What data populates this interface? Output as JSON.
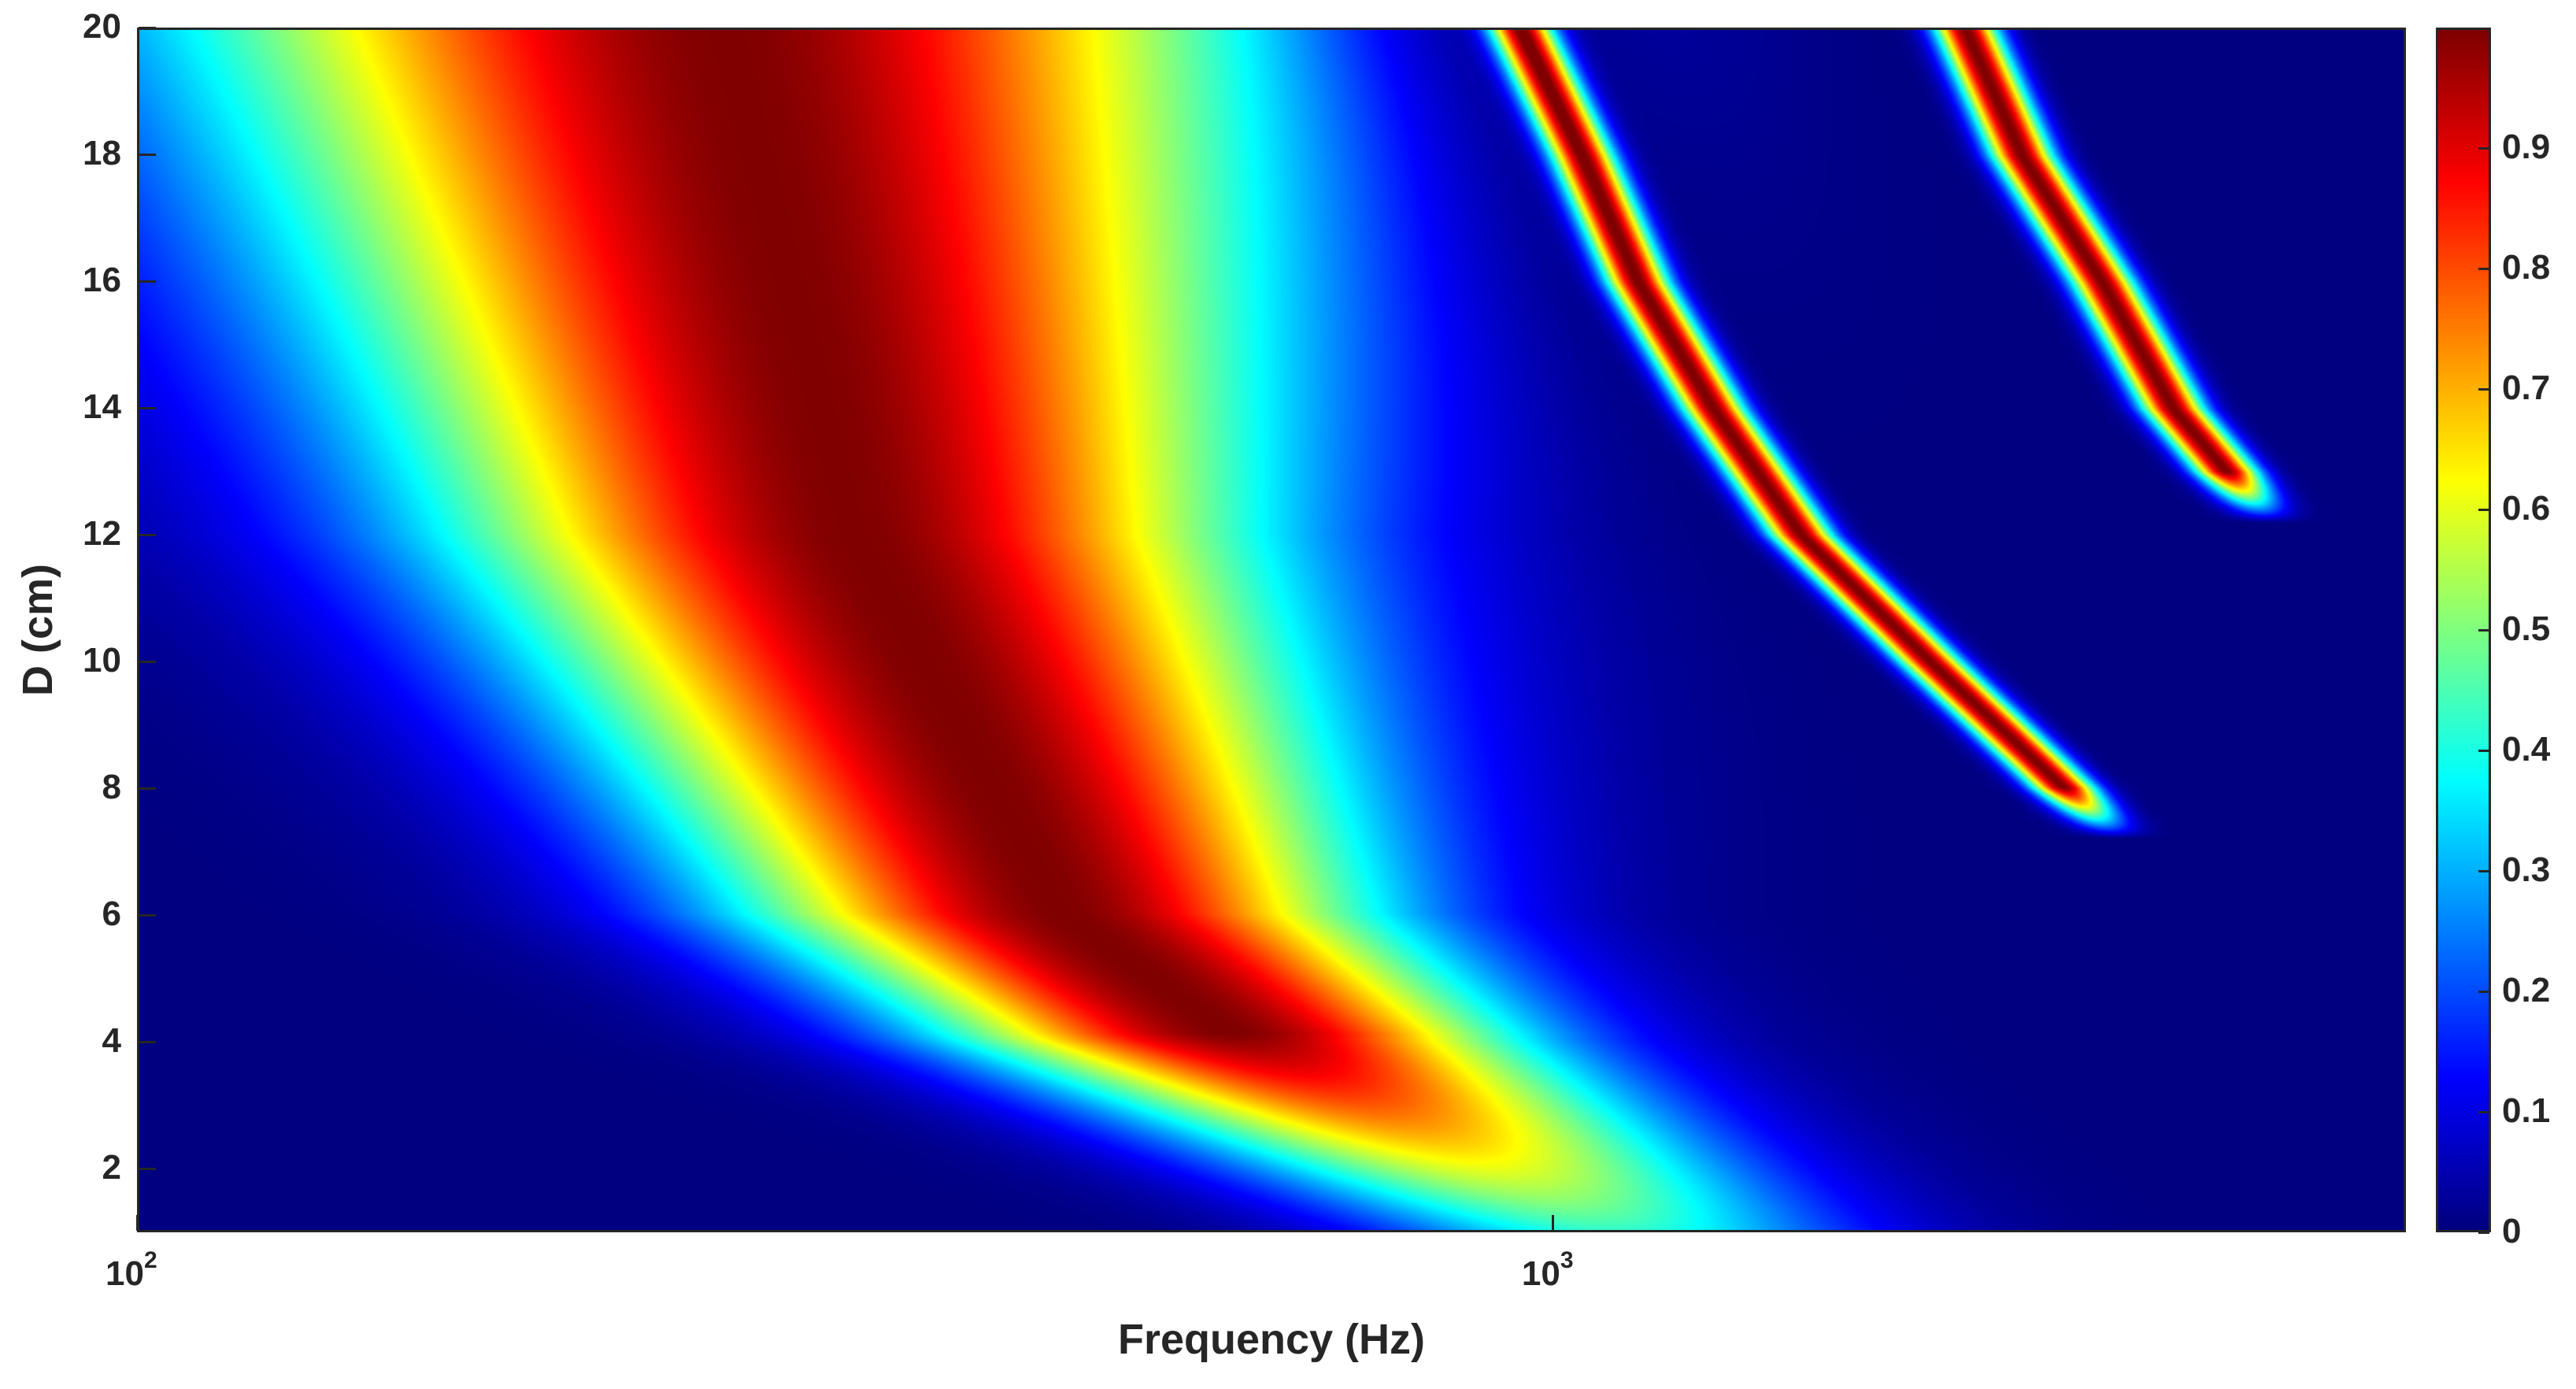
{
  "chart_data": {
    "type": "heatmap",
    "title": "",
    "xlabel": "Frequency (Hz)",
    "ylabel": "D (cm)",
    "x_scale": "log",
    "xlim": [
      100,
      4000
    ],
    "ylim": [
      1,
      20
    ],
    "x_ticks": [
      {
        "value": 100,
        "base": "10",
        "exponent": "2"
      },
      {
        "value": 1000,
        "base": "10",
        "exponent": "3"
      }
    ],
    "y_ticks": [
      2,
      4,
      6,
      8,
      10,
      12,
      14,
      16,
      18,
      20
    ],
    "colorbar": {
      "colormap": "jet",
      "clim": [
        0,
        1
      ],
      "ticks": [
        0,
        0.1,
        0.2,
        0.3,
        0.4,
        0.5,
        0.6,
        0.7,
        0.8,
        0.9
      ]
    },
    "features": [
      {
        "name": "main band",
        "peak_value": 1.0,
        "center_freq_hz_at_D": [
          [
            20,
            260
          ],
          [
            12,
            320
          ],
          [
            6,
            450
          ],
          [
            4,
            600
          ],
          [
            2,
            900
          ]
        ],
        "width_decades": 0.45
      },
      {
        "name": "narrow resonance ridge 1",
        "peak_value": 1.0,
        "freq_hz_at_D": [
          [
            20,
            950
          ],
          [
            18,
            1050
          ],
          [
            16,
            1150
          ],
          [
            14,
            1300
          ],
          [
            12,
            1500
          ],
          [
            10,
            1850
          ],
          [
            8,
            2300
          ]
        ]
      },
      {
        "name": "narrow resonance ridge 2",
        "peak_value": 1.0,
        "freq_hz_at_D": [
          [
            20,
            1960
          ],
          [
            18,
            2150
          ],
          [
            16,
            2450
          ],
          [
            14,
            2750
          ],
          [
            13,
            3000
          ]
        ]
      }
    ],
    "grid": false
  }
}
